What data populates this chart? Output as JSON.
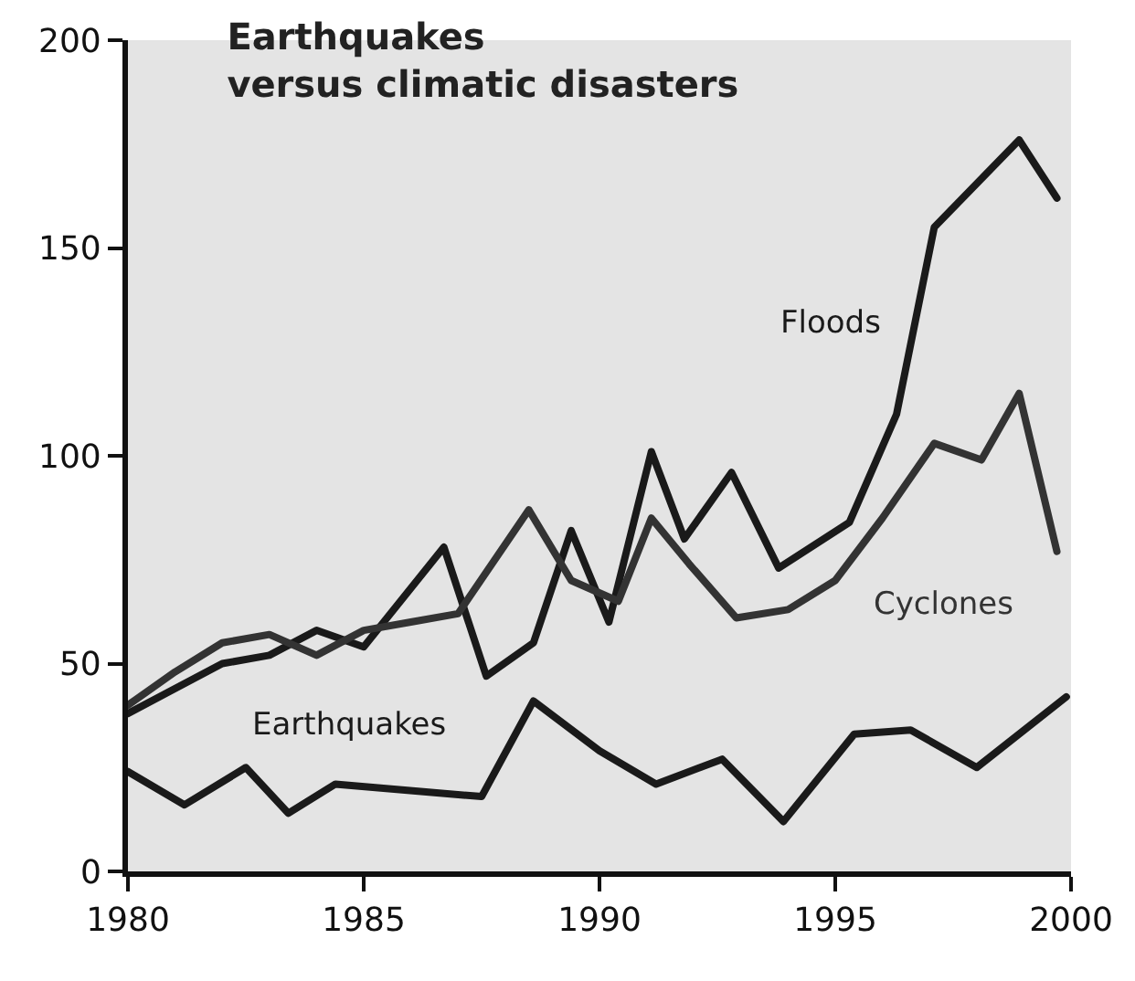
{
  "chart_data": {
    "type": "line",
    "title": "Earthquakes\nversus climatic disasters",
    "xlim": [
      1980,
      2000
    ],
    "xticks": [
      1980,
      1985,
      1990,
      1995,
      2000
    ],
    "ylim": [
      0,
      200
    ],
    "yticks": [
      0,
      50,
      100,
      150,
      200
    ],
    "grid": false,
    "legend": false,
    "marker": "none",
    "line_style": "solid",
    "series": [
      {
        "name": "Floods",
        "color": "#1a1a1a",
        "x": [
          1980,
          1982,
          1983,
          1984,
          1985,
          1986.7,
          1987.6,
          1988.6,
          1989.4,
          1990.2,
          1991.1,
          1991.8,
          1992.8,
          1993.8,
          1995.3,
          1996.3,
          1997.1,
          1998.9,
          1999.7
        ],
        "values": [
          38,
          50,
          52,
          58,
          54,
          78,
          47,
          55,
          82,
          60,
          101,
          80,
          96,
          73,
          84,
          110,
          155,
          176,
          162
        ]
      },
      {
        "name": "Cyclones",
        "color": "#333333",
        "x": [
          1980,
          1981,
          1982,
          1983,
          1984,
          1985,
          1986,
          1987,
          1988.5,
          1989.4,
          1990.4,
          1991.1,
          1991.9,
          1992.9,
          1994,
          1995,
          1996,
          1997.1,
          1998.1,
          1998.9,
          1999.7
        ],
        "values": [
          40,
          48,
          55,
          57,
          52,
          58,
          60,
          62,
          87,
          70,
          65,
          85,
          74,
          61,
          63,
          70,
          85,
          103,
          99,
          115,
          77
        ]
      },
      {
        "name": "Earthquakes",
        "color": "#1a1a1a",
        "x": [
          1980,
          1981.2,
          1982.5,
          1983.4,
          1984.4,
          1987.5,
          1988.6,
          1990,
          1991.2,
          1992.6,
          1993.9,
          1995.4,
          1996.6,
          1998,
          1999.9
        ],
        "values": [
          24,
          16,
          25,
          14,
          21,
          18,
          41,
          29,
          21,
          27,
          12,
          33,
          34,
          25,
          42
        ]
      }
    ]
  }
}
